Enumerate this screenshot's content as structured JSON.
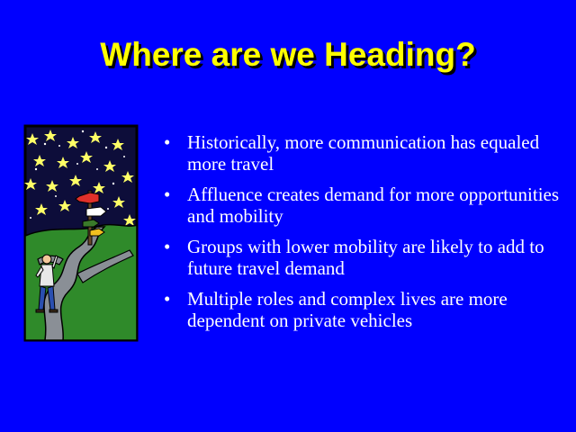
{
  "slide": {
    "title": "Where are we Heading?",
    "bullet_symbol": "•",
    "bullets": [
      "Historically, more communication has equaled more travel",
      "Affluence creates demand for more opportunities and mobility",
      "Groups with lower mobility are likely to add to future travel demand",
      "Multiple roles and complex lives are more dependent on private vehicles"
    ]
  },
  "colors": {
    "background": "#0000ff",
    "title": "#ffff00",
    "text": "#ffffff",
    "night_sky": "#101040",
    "grass": "#2f8a2a",
    "road": "#8a8f96"
  },
  "clipart": {
    "icon": "traveler-at-signpost-under-stars"
  }
}
